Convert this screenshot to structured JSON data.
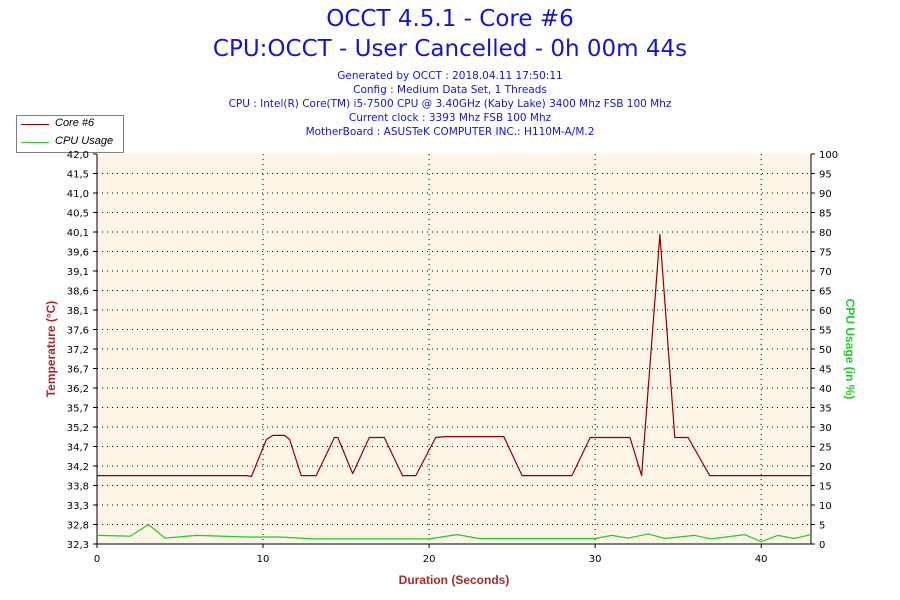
{
  "header": {
    "title": "OCCT 4.5.1 - Core #6",
    "subtitle": "CPU:OCCT - User Cancelled - 0h 00m 44s",
    "info_lines": [
      "Generated by OCCT : 2018.04.11 17:50:11",
      "Config : Medium Data Set, 1 Threads",
      "CPU : Intel(R) Core(TM) i5-7500 CPU @ 3.40GHz (Kaby Lake) 3400 Mhz FSB 100 Mhz",
      "Current clock : 3393 Mhz FSB 100 Mhz",
      "MotherBoard : ASUSTeK COMPUTER INC.: H110M-A/M.2"
    ]
  },
  "colors": {
    "temperature": "#8b0000",
    "cpu_usage": "#22cc22",
    "plot_bg": "#fdf6e8",
    "title": "#1414d2",
    "xlabel": "#a52a2a",
    "ylabel_left": "#a52a2a",
    "ylabel_right": "#22cc22"
  },
  "chart_data": {
    "type": "line",
    "xlabel": "Duration (Seconds)",
    "ylabel": "Temperature (°C)",
    "ylabel_right": "CPU Usage (in %)",
    "xlim": [
      0,
      43
    ],
    "x_ticks": [
      "0",
      "10",
      "20",
      "30",
      "40"
    ],
    "x_tick_values": [
      0,
      10,
      20,
      30,
      40
    ],
    "ylim": [
      32.3,
      42.0
    ],
    "y_ticks": [
      "32,3",
      "32,8",
      "33,3",
      "33,8",
      "34,2",
      "34,7",
      "35,2",
      "35,7",
      "36,2",
      "36,7",
      "37,2",
      "37,6",
      "38,1",
      "38,6",
      "39,1",
      "39,6",
      "40,1",
      "40,5",
      "41,0",
      "41,5",
      "42,0"
    ],
    "ylim_right": [
      0,
      100
    ],
    "y_ticks_right": [
      "0",
      "5",
      "10",
      "15",
      "20",
      "25",
      "30",
      "35",
      "40",
      "45",
      "50",
      "55",
      "60",
      "65",
      "70",
      "75",
      "80",
      "85",
      "90",
      "95",
      "100"
    ],
    "grid": true,
    "legend_position": "top-left",
    "series": [
      {
        "name": "Core #6",
        "axis": "left",
        "points": [
          [
            0,
            34.0
          ],
          [
            9,
            34.0
          ],
          [
            9.3,
            33.98
          ],
          [
            10.2,
            34.9
          ],
          [
            10.6,
            35.0
          ],
          [
            11.3,
            35.0
          ],
          [
            11.6,
            34.9
          ],
          [
            12.3,
            34.0
          ],
          [
            13.2,
            34.0
          ],
          [
            14.3,
            34.95
          ],
          [
            14.5,
            34.95
          ],
          [
            15.4,
            34.05
          ],
          [
            16.4,
            34.95
          ],
          [
            17.3,
            34.95
          ],
          [
            18.4,
            34.0
          ],
          [
            19.2,
            34.0
          ],
          [
            20.4,
            34.95
          ],
          [
            21,
            34.97
          ],
          [
            24.5,
            34.97
          ],
          [
            25.6,
            34.0
          ],
          [
            28.6,
            34.0
          ],
          [
            29.7,
            34.95
          ],
          [
            31.2,
            34.95
          ],
          [
            32.1,
            34.95
          ],
          [
            32.8,
            34.0
          ],
          [
            33.9,
            40.0
          ],
          [
            34.8,
            34.95
          ],
          [
            35.6,
            34.95
          ],
          [
            36.9,
            34.0
          ],
          [
            43,
            34.0
          ]
        ]
      },
      {
        "name": "CPU Usage",
        "axis": "right",
        "points": [
          [
            0,
            2.2
          ],
          [
            2,
            2
          ],
          [
            3.1,
            5
          ],
          [
            4.1,
            1.5
          ],
          [
            6,
            2.2
          ],
          [
            9,
            1.8
          ],
          [
            11,
            1.8
          ],
          [
            13,
            1.3
          ],
          [
            16,
            1.3
          ],
          [
            20,
            1.3
          ],
          [
            21.7,
            2.4
          ],
          [
            23,
            1.4
          ],
          [
            26,
            1.4
          ],
          [
            30,
            1.4
          ],
          [
            31,
            2.2
          ],
          [
            32,
            1.5
          ],
          [
            33.2,
            2.6
          ],
          [
            34.2,
            1.4
          ],
          [
            36,
            2.2
          ],
          [
            37,
            1.3
          ],
          [
            39,
            2.4
          ],
          [
            40,
            0.6
          ],
          [
            41,
            2.2
          ],
          [
            42,
            1.4
          ],
          [
            43,
            2.4
          ]
        ]
      }
    ]
  }
}
